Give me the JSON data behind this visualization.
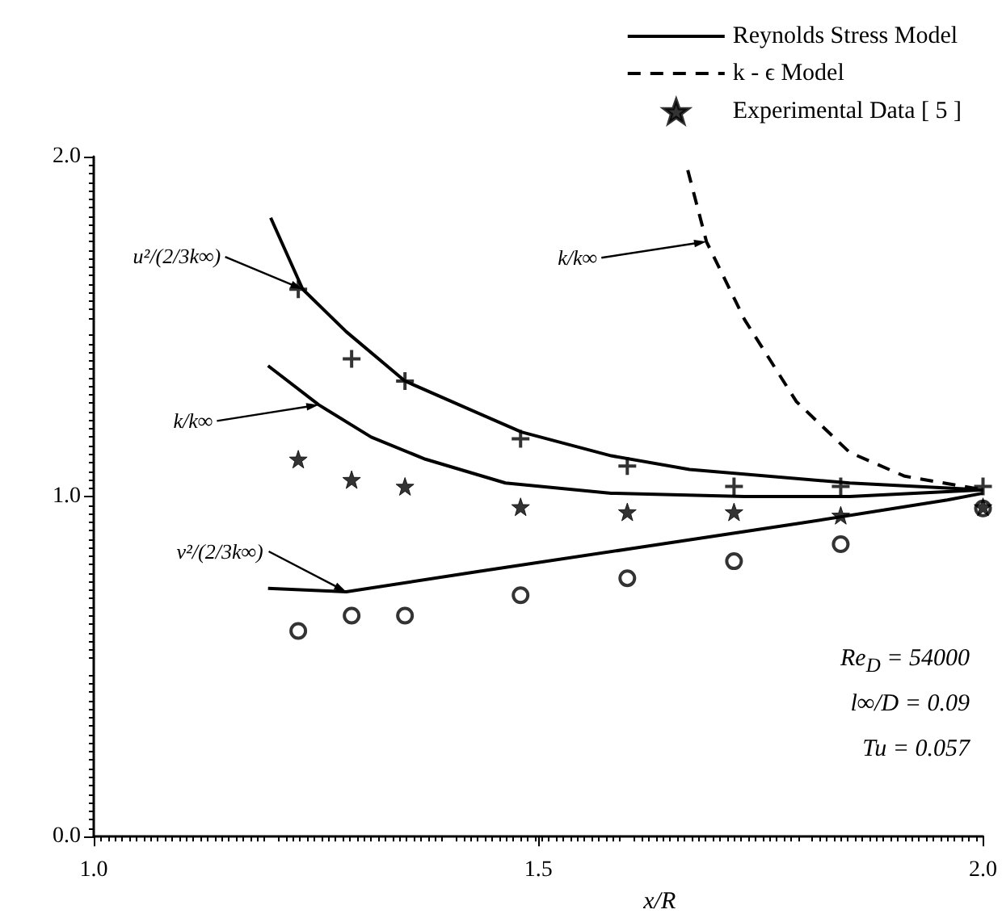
{
  "chart_data": {
    "type": "line",
    "xlabel": "x/R",
    "xlim": [
      1.0,
      2.0
    ],
    "ylim": [
      0.0,
      2.0
    ],
    "xticks": [
      {
        "value": 1,
        "label": "1.0"
      },
      {
        "value": 1.5,
        "label": "1.5"
      },
      {
        "value": 2,
        "label": "2.0"
      }
    ],
    "yticks": [
      {
        "value": 0,
        "label": "0.0"
      },
      {
        "value": 1,
        "label": "1.0"
      },
      {
        "value": 2,
        "label": "2.0"
      }
    ],
    "grid": false,
    "legend": "top right",
    "series": [
      {
        "name": "Reynolds Stress Model",
        "line_style": "solid",
        "marker": "none",
        "color": "#000000",
        "x": [
          1.199,
          1.235,
          1.284,
          1.35,
          1.402,
          1.481,
          1.582,
          1.67,
          1.85,
          2.0
        ],
        "values": [
          1.82,
          1.61,
          1.485,
          1.34,
          1.28,
          1.19,
          1.12,
          1.08,
          1.04,
          1.02
        ]
      },
      {
        "line_style": "solid",
        "marker": "none",
        "color": "#000000",
        "x": [
          1.196,
          1.253,
          1.312,
          1.373,
          1.463,
          1.582,
          1.732,
          1.85,
          2.0
        ],
        "values": [
          1.385,
          1.27,
          1.175,
          1.11,
          1.04,
          1.01,
          1.0,
          1.0,
          1.02
        ]
      },
      {
        "line_style": "solid",
        "marker": "none",
        "color": "#000000",
        "x": [
          1.196,
          1.284,
          1.433,
          1.612,
          1.79,
          1.96,
          2.0
        ],
        "values": [
          0.73,
          0.72,
          0.78,
          0.85,
          0.92,
          0.99,
          1.01
        ]
      },
      {
        "name": "k - ϵ Model",
        "line_style": "dashed",
        "marker": "none",
        "color": "#000000",
        "x": [
          1.668,
          1.689,
          1.732,
          1.79,
          1.85,
          1.912,
          2.0
        ],
        "values": [
          1.96,
          1.75,
          1.52,
          1.28,
          1.13,
          1.06,
          1.02
        ]
      },
      {
        "type": "scatter",
        "marker": "circle",
        "color": "#000000",
        "x": [
          1.23,
          1.29,
          1.35,
          1.48,
          1.6,
          1.72,
          1.84,
          2.0
        ],
        "values": [
          0.605,
          0.65,
          0.65,
          0.71,
          0.76,
          0.81,
          0.86,
          0.965
        ]
      },
      {
        "type": "scatter",
        "marker": "cross",
        "color": "#000000",
        "x": [
          1.23,
          1.29,
          1.35,
          1.48,
          1.6,
          1.72,
          1.84,
          2.0
        ],
        "values": [
          1.61,
          1.405,
          1.34,
          1.17,
          1.09,
          1.03,
          1.03,
          1.03
        ]
      },
      {
        "name": "Experimental Data [ 5 ]",
        "type": "scatter",
        "marker": "star",
        "color": "#000000",
        "x": [
          1.23,
          1.29,
          1.35,
          1.48,
          1.6,
          1.72,
          1.84,
          2.0
        ],
        "values": [
          1.11,
          1.05,
          1.03,
          0.97,
          0.955,
          0.955,
          0.945,
          0.97
        ]
      }
    ],
    "annotations": [
      {
        "text": "u²/(2/3k∞)",
        "x": 1.235,
        "y": 1.61
      },
      {
        "text": "k/k∞",
        "x": 1.253,
        "y": 1.27
      },
      {
        "text": "v²/(2/3k∞)",
        "x": 1.284,
        "y": 0.72
      },
      {
        "text": "k/k∞",
        "x": 1.689,
        "y": 1.75
      },
      "Re$_{D}$ = 54000",
      "l∞/D = 0.09",
      "Tu = 0.057"
    ]
  }
}
